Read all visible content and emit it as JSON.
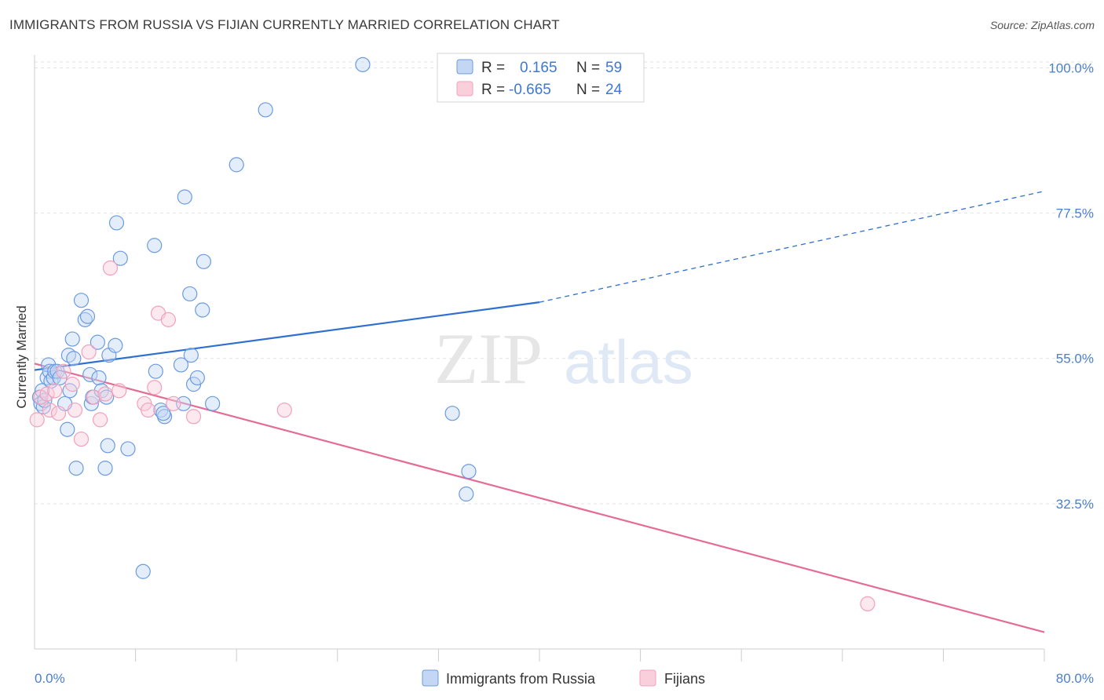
{
  "title": "IMMIGRANTS FROM RUSSIA VS FIJIAN CURRENTLY MARRIED CORRELATION CHART",
  "source": "Source: ZipAtlas.com",
  "watermark": {
    "zip": "ZIP",
    "atlas": "atlas"
  },
  "colors": {
    "blue": "#6b9be0",
    "blue_line": "#2e6fd0",
    "pink": "#f2a0bb",
    "pink_line": "#e56b96",
    "axis_label": "#4a7fd0"
  },
  "legend": {
    "rows": [
      {
        "r_label": "R =",
        "r_value": "0.165",
        "n_label": "N =",
        "n_value": "59",
        "color": "blue"
      },
      {
        "r_label": "R =",
        "r_value": "-0.665",
        "n_label": "N =",
        "n_value": "24",
        "color": "pink"
      }
    ]
  },
  "bottom_legend": [
    "Immigrants from Russia",
    "Fijians"
  ],
  "chart_data": {
    "type": "scatter",
    "title": "IMMIGRANTS FROM RUSSIA VS FIJIAN CURRENTLY MARRIED CORRELATION CHART",
    "xlabel": "",
    "ylabel": "Currently Married",
    "xlim": [
      0,
      80
    ],
    "ylim": [
      10,
      102
    ],
    "x_tick_labels": [
      "0.0%",
      "80.0%"
    ],
    "y_ticks": [
      100,
      77.5,
      55,
      32.5
    ],
    "y_tick_labels": [
      "100.0%",
      "77.5%",
      "55.0%",
      "32.5%"
    ],
    "grid": true,
    "series": [
      {
        "name": "Immigrants from Russia",
        "r": 0.165,
        "n": 59,
        "points": [
          [
            0.4,
            49
          ],
          [
            0.5,
            48
          ],
          [
            0.6,
            50
          ],
          [
            0.7,
            47.5
          ],
          [
            0.8,
            48.5
          ],
          [
            1.0,
            52
          ],
          [
            1.1,
            54
          ],
          [
            1.2,
            53
          ],
          [
            1.3,
            51.5
          ],
          [
            1.5,
            52
          ],
          [
            1.6,
            53
          ],
          [
            1.8,
            53
          ],
          [
            2.0,
            52
          ],
          [
            2.4,
            48
          ],
          [
            2.6,
            44
          ],
          [
            2.7,
            55.5
          ],
          [
            2.8,
            50
          ],
          [
            3.0,
            58
          ],
          [
            3.1,
            55
          ],
          [
            3.3,
            38
          ],
          [
            3.7,
            64
          ],
          [
            4.0,
            61
          ],
          [
            4.2,
            61.5
          ],
          [
            4.4,
            52.5
          ],
          [
            4.5,
            48
          ],
          [
            4.6,
            49
          ],
          [
            5.0,
            57.5
          ],
          [
            5.1,
            52
          ],
          [
            5.3,
            50
          ],
          [
            5.6,
            38
          ],
          [
            5.7,
            49
          ],
          [
            5.8,
            41.5
          ],
          [
            5.9,
            55.5
          ],
          [
            6.4,
            57
          ],
          [
            6.5,
            76
          ],
          [
            6.8,
            70.5
          ],
          [
            7.4,
            41
          ],
          [
            8.6,
            22
          ],
          [
            9.5,
            72.5
          ],
          [
            9.6,
            53
          ],
          [
            10.0,
            47
          ],
          [
            10.3,
            46
          ],
          [
            11.6,
            54
          ],
          [
            11.8,
            48
          ],
          [
            11.9,
            80
          ],
          [
            12.3,
            65
          ],
          [
            12.4,
            55.5
          ],
          [
            12.6,
            51
          ],
          [
            12.9,
            52
          ],
          [
            13.3,
            62.5
          ],
          [
            13.4,
            70
          ],
          [
            14.1,
            48
          ],
          [
            16.0,
            85
          ],
          [
            18.3,
            93.5
          ],
          [
            26.0,
            100.5
          ],
          [
            33.1,
            46.5
          ],
          [
            34.2,
            34
          ],
          [
            34.4,
            37.5
          ],
          [
            10.2,
            46.5
          ]
        ]
      },
      {
        "name": "Fijians",
        "r": -0.665,
        "n": 24,
        "points": [
          [
            0.2,
            45.5
          ],
          [
            0.5,
            49
          ],
          [
            1.0,
            49.5
          ],
          [
            1.2,
            47
          ],
          [
            1.6,
            50
          ],
          [
            1.9,
            46.5
          ],
          [
            2.3,
            53
          ],
          [
            3.0,
            51
          ],
          [
            3.2,
            47
          ],
          [
            3.7,
            42.5
          ],
          [
            4.3,
            56
          ],
          [
            4.7,
            49
          ],
          [
            5.2,
            45.5
          ],
          [
            5.6,
            49.5
          ],
          [
            6.0,
            69
          ],
          [
            6.7,
            50
          ],
          [
            8.7,
            48
          ],
          [
            9.0,
            47
          ],
          [
            9.5,
            50.5
          ],
          [
            9.8,
            62
          ],
          [
            10.6,
            61
          ],
          [
            11.0,
            48
          ],
          [
            12.6,
            46
          ],
          [
            19.8,
            47
          ]
        ]
      }
    ],
    "trend_lines": [
      {
        "series": "Immigrants from Russia",
        "solid": [
          [
            0,
            53.2
          ],
          [
            40,
            63.7
          ]
        ],
        "dashed": [
          [
            40,
            63.7
          ],
          [
            80,
            80.9
          ]
        ]
      },
      {
        "series": "Fijians",
        "solid": [
          [
            0,
            54.2
          ],
          [
            80,
            12.6
          ]
        ]
      }
    ],
    "extra_points": {
      "Fijians": [
        [
          66,
          17
        ]
      ]
    }
  }
}
